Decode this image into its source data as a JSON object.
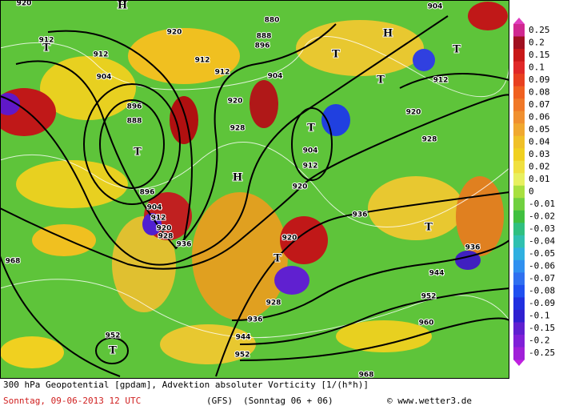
{
  "map": {
    "labels": [
      "920",
      "912",
      "T",
      "912",
      "H",
      "920",
      "912",
      "912",
      "880",
      "888",
      "896",
      "904",
      "904",
      "896",
      "888",
      "T",
      "920",
      "928",
      "H",
      "T",
      "904",
      "912",
      "920",
      "896",
      "904",
      "912",
      "920",
      "928",
      "936",
      "H",
      "T",
      "T",
      "T",
      "912",
      "904",
      "920",
      "928",
      "936",
      "T",
      "936",
      "944",
      "952",
      "960",
      "920",
      "T",
      "928",
      "936",
      "944",
      "952",
      "968",
      "952",
      "T",
      "968"
    ]
  },
  "legend": {
    "levels": [
      "0.25",
      "0.2",
      "0.15",
      "0.1",
      "0.09",
      "0.08",
      "0.07",
      "0.06",
      "0.05",
      "0.04",
      "0.03",
      "0.02",
      "0.01",
      "0",
      "-0.01",
      "-0.02",
      "-0.03",
      "-0.04",
      "-0.05",
      "-0.06",
      "-0.07",
      "-0.08",
      "-0.09",
      "-0.1",
      "-0.15",
      "-0.2",
      "-0.25"
    ]
  },
  "footer": {
    "title": "300 hPa Geopotential [gpdam], Advektion absoluter Vorticity [1/(h*h)]",
    "date": "Sonntag, 09-06-2013  12 UTC",
    "model": "(GFS)",
    "run": "(Sonntag 06 + 06)",
    "site": "© www.wetter3.de"
  }
}
